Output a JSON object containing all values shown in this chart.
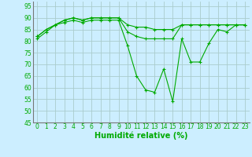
{
  "x": [
    0,
    1,
    2,
    3,
    4,
    5,
    6,
    7,
    8,
    9,
    10,
    11,
    12,
    13,
    14,
    15,
    16,
    17,
    18,
    19,
    20,
    21,
    22,
    23
  ],
  "line1": [
    81,
    84,
    87,
    88,
    89,
    88,
    89,
    89,
    89,
    89,
    78,
    65,
    59,
    58,
    68,
    54,
    81,
    71,
    71,
    79,
    85,
    84,
    87,
    87
  ],
  "line2": [
    82,
    85,
    87,
    89,
    90,
    89,
    90,
    90,
    90,
    90,
    84,
    82,
    81,
    81,
    81,
    81,
    87,
    87,
    87,
    87,
    87,
    87,
    87,
    87
  ],
  "line3": [
    82,
    85,
    87,
    89,
    90,
    89,
    90,
    90,
    90,
    90,
    87,
    86,
    86,
    85,
    85,
    85,
    87,
    87,
    87,
    87,
    87,
    87,
    87,
    87
  ],
  "bg_color": "#cceeff",
  "grid_color": "#aacccc",
  "line_color": "#00aa00",
  "xlabel": "Humidité relative (%)",
  "ylim": [
    45,
    97
  ],
  "xlim": [
    -0.5,
    23.5
  ],
  "yticks": [
    45,
    50,
    55,
    60,
    65,
    70,
    75,
    80,
    85,
    90,
    95
  ],
  "xticks": [
    0,
    1,
    2,
    3,
    4,
    5,
    6,
    7,
    8,
    9,
    10,
    11,
    12,
    13,
    14,
    15,
    16,
    17,
    18,
    19,
    20,
    21,
    22,
    23
  ],
  "tick_fontsize": 5.5,
  "xlabel_fontsize": 7
}
